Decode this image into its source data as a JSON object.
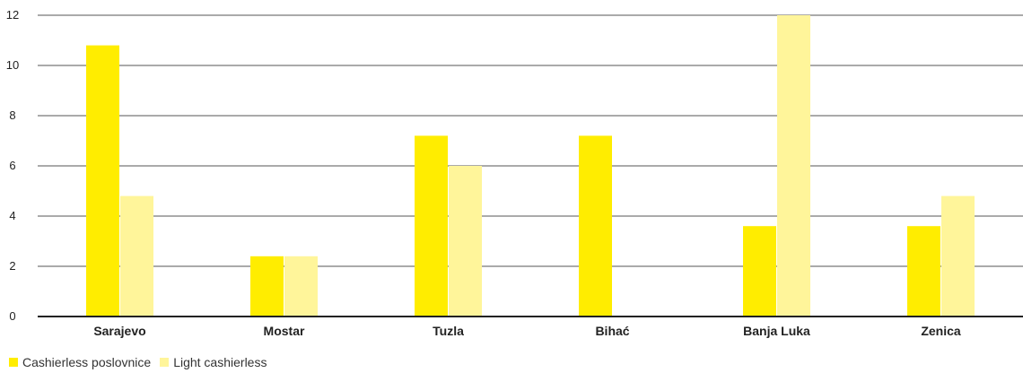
{
  "chart_data": {
    "type": "bar",
    "categories": [
      "Sarajevo",
      "Mostar",
      "Tuzla",
      "Bihać",
      "Banja Luka",
      "Zenica"
    ],
    "series": [
      {
        "name": "Cashierless poslovnice",
        "color": "#FFED00",
        "values": [
          10.8,
          2.4,
          7.2,
          7.2,
          3.6,
          3.6
        ]
      },
      {
        "name": "Light cashierless",
        "color": "#FFF59A",
        "values": [
          4.8,
          2.4,
          6.0,
          0,
          12.0,
          4.8
        ]
      }
    ],
    "yticks": [
      0,
      2,
      4,
      6,
      8,
      10,
      12
    ],
    "ylim": [
      0,
      12
    ],
    "grid": true,
    "legend_position": "bottom-left",
    "title": "",
    "xlabel": "",
    "ylabel": ""
  }
}
